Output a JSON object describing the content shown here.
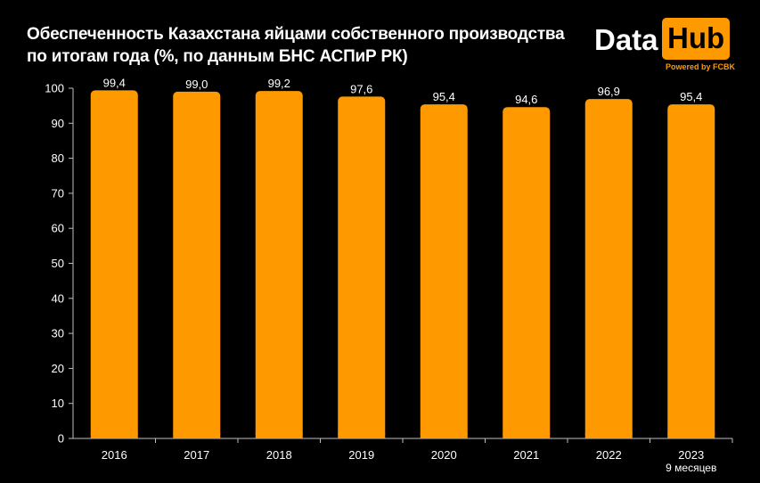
{
  "title_line1": "Обеспеченность Казахстана яйцами собственного производства",
  "title_line2": "по итогам года (%, по  данным БНС АСПиР РК)",
  "logo": {
    "part1": "Data",
    "part2": "Hub",
    "powered": "Powered by FCBK",
    "accent": "#ff9900"
  },
  "chart_data": {
    "type": "bar",
    "categories": [
      "2016",
      "2017",
      "2018",
      "2019",
      "2020",
      "2021",
      "2022",
      "2023"
    ],
    "category_sublabels": [
      "",
      "",
      "",
      "",
      "",
      "",
      "",
      "9 месяцев"
    ],
    "values": [
      99.4,
      99.0,
      99.2,
      97.6,
      95.4,
      94.6,
      96.9,
      95.4
    ],
    "data_labels": [
      "99,4",
      "99,0",
      "99,2",
      "97,6",
      "95,4",
      "94,6",
      "96,9",
      "95,4"
    ],
    "ylim": [
      0,
      100
    ],
    "yticks": [
      0,
      10,
      20,
      30,
      40,
      50,
      60,
      70,
      80,
      90,
      100
    ],
    "bar_color": "#ff9900",
    "grid": false
  }
}
